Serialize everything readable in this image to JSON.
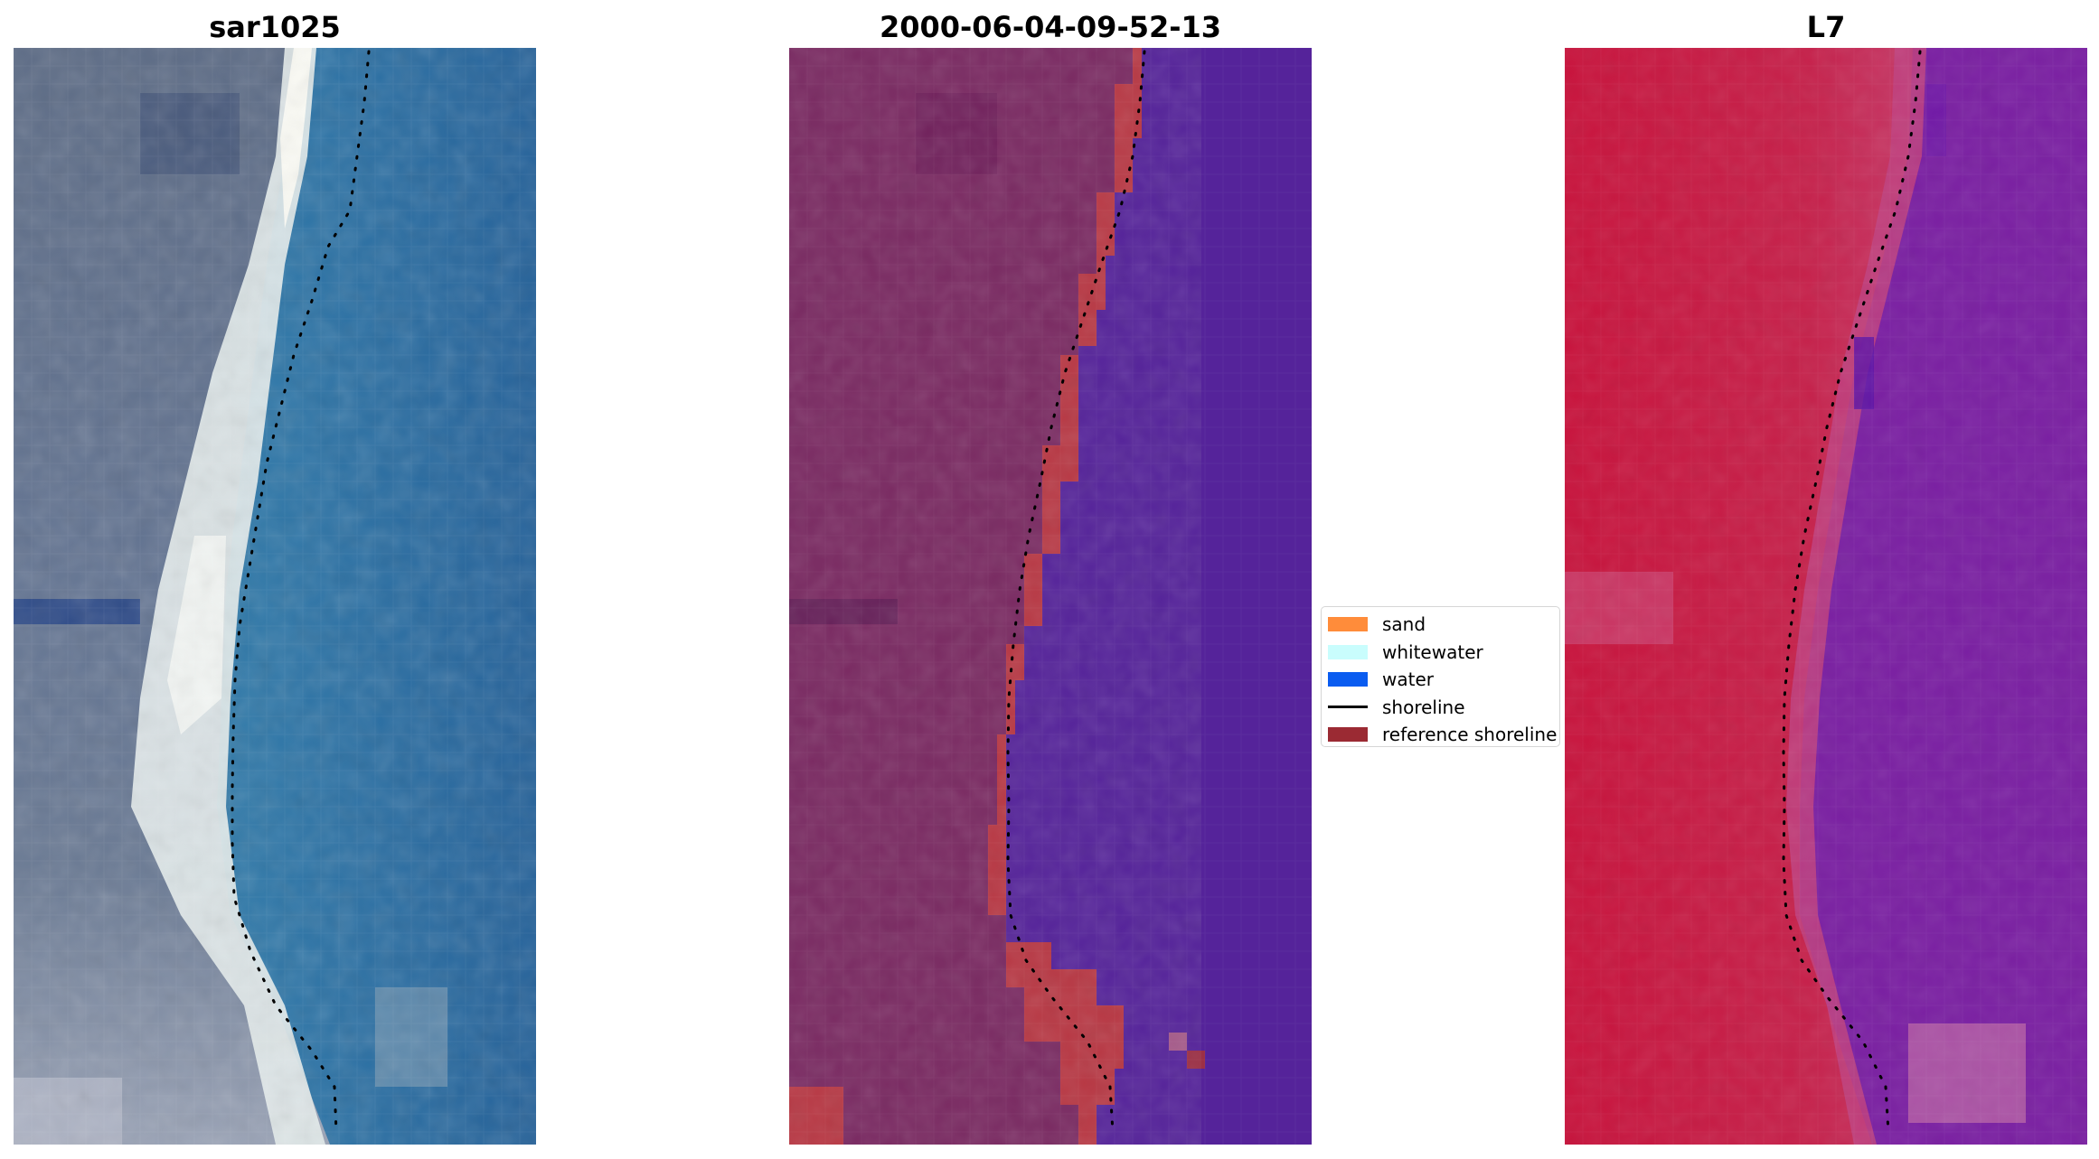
{
  "panels": [
    {
      "id": "rgb",
      "title": "sar1025"
    },
    {
      "id": "classified",
      "title": "2000-06-04-09-52-13"
    },
    {
      "id": "index",
      "title": "L7"
    }
  ],
  "legend": {
    "items": [
      {
        "label": "sand",
        "kind": "patch",
        "color": "#ff8c3a"
      },
      {
        "label": "whitewater",
        "kind": "patch",
        "color": "#c9fdfd"
      },
      {
        "label": "water",
        "kind": "patch",
        "color": "#0a5cf0"
      },
      {
        "label": "shoreline",
        "kind": "line",
        "color": "#000000"
      },
      {
        "label": "reference shoreline",
        "kind": "patch",
        "color": "#9b2a33"
      }
    ]
  },
  "colors": {
    "rgb_land": "#62708a",
    "rgb_sand": "#e8f0ee",
    "rgb_water": "#2b6e9e",
    "classified_land": "#7a2a62",
    "classified_sand": "#b83844",
    "classified_water": "#55239a",
    "index_land": "#c41a3e",
    "index_water": "#7a1fa2",
    "shoreline": "#000000"
  }
}
